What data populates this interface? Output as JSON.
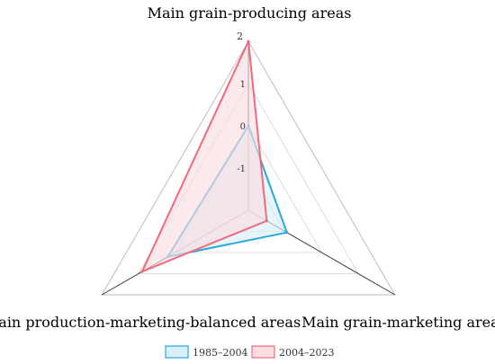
{
  "chart_data": {
    "type": "radar",
    "axes": [
      "Main grain-producing areas",
      "Main grain-marketing areas",
      "Grain production-marketing-balanced areas"
    ],
    "rlim": [
      -2,
      2
    ],
    "ticks": [
      "-1",
      "0",
      "1",
      "2"
    ],
    "tick_values": [
      -1,
      0,
      1,
      2
    ],
    "grid": true,
    "legend_position": "bottom",
    "series": [
      {
        "name": "1985–2004",
        "values": [
          0.0,
          -0.95,
          0.2
        ],
        "color": "#2aa7df",
        "fill": "#d8f0f7"
      },
      {
        "name": "2004–2023",
        "values": [
          2.0,
          -1.5,
          0.9
        ],
        "color": "#ef6a7e",
        "fill": "#fbdde2"
      }
    ]
  }
}
